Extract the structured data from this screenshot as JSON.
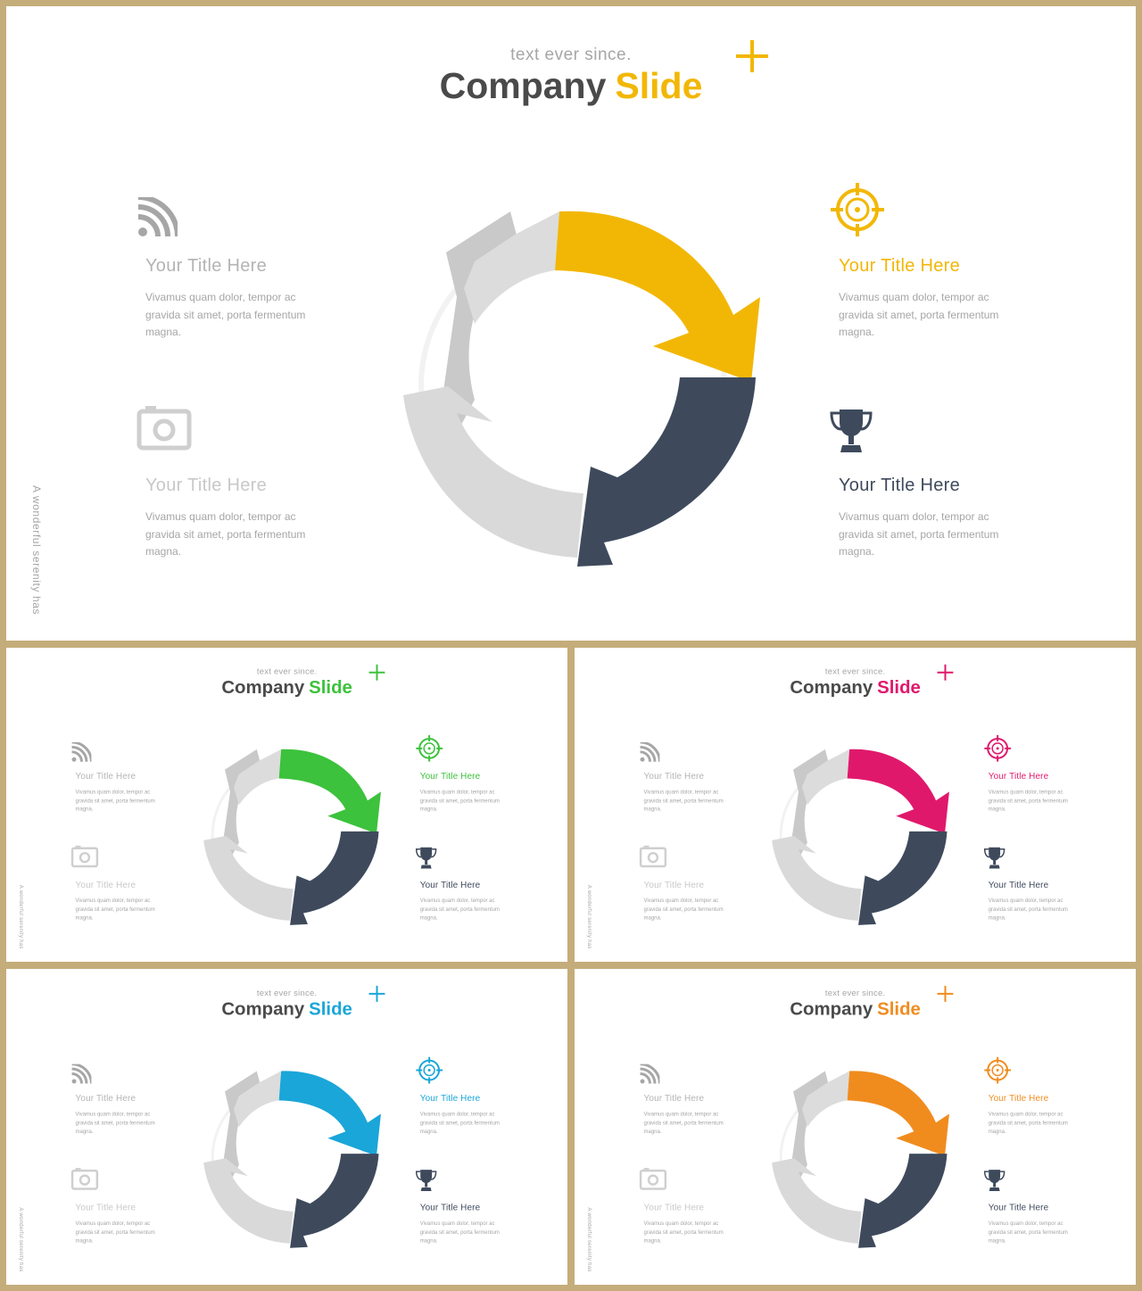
{
  "slides": [
    {
      "id": "main",
      "accent": "#f2b705"
    },
    {
      "id": "s1",
      "accent": "#3cc23c"
    },
    {
      "id": "s2",
      "accent": "#e0186c"
    },
    {
      "id": "s3",
      "accent": "#1aa6d8"
    },
    {
      "id": "s4",
      "accent": "#f08c1e"
    }
  ],
  "content": {
    "supertitle": "text ever since.",
    "title_word1": "Company",
    "title_word2": "Slide",
    "side_text": "A wonderful serenity has",
    "blocks": [
      {
        "title": "Your Title Here",
        "text": "Vivamus quam dolor, tempor ac gravida sit amet, porta fermentum magna."
      },
      {
        "title": "Your Title Here",
        "text": "Vivamus quam dolor, tempor ac gravida sit amet, porta fermentum magna."
      },
      {
        "title": "Your Title Here",
        "text": "Vivamus quam dolor, tempor ac gravida sit amet, porta fermentum magna."
      },
      {
        "title": "Your Title Here",
        "text": "Vivamus quam dolor, tempor ac gravida sit amet, porta fermentum magna."
      }
    ]
  },
  "icons": {
    "left_top": "rss-icon",
    "left_bottom": "camera-icon",
    "right_top": "target-icon",
    "right_bottom": "trophy-icon",
    "corner": "plus-icon"
  },
  "colors": {
    "dark_segment": "#3e4a5c",
    "gray_segment": "#d9d9d9",
    "frame": "#c4ad7a"
  }
}
